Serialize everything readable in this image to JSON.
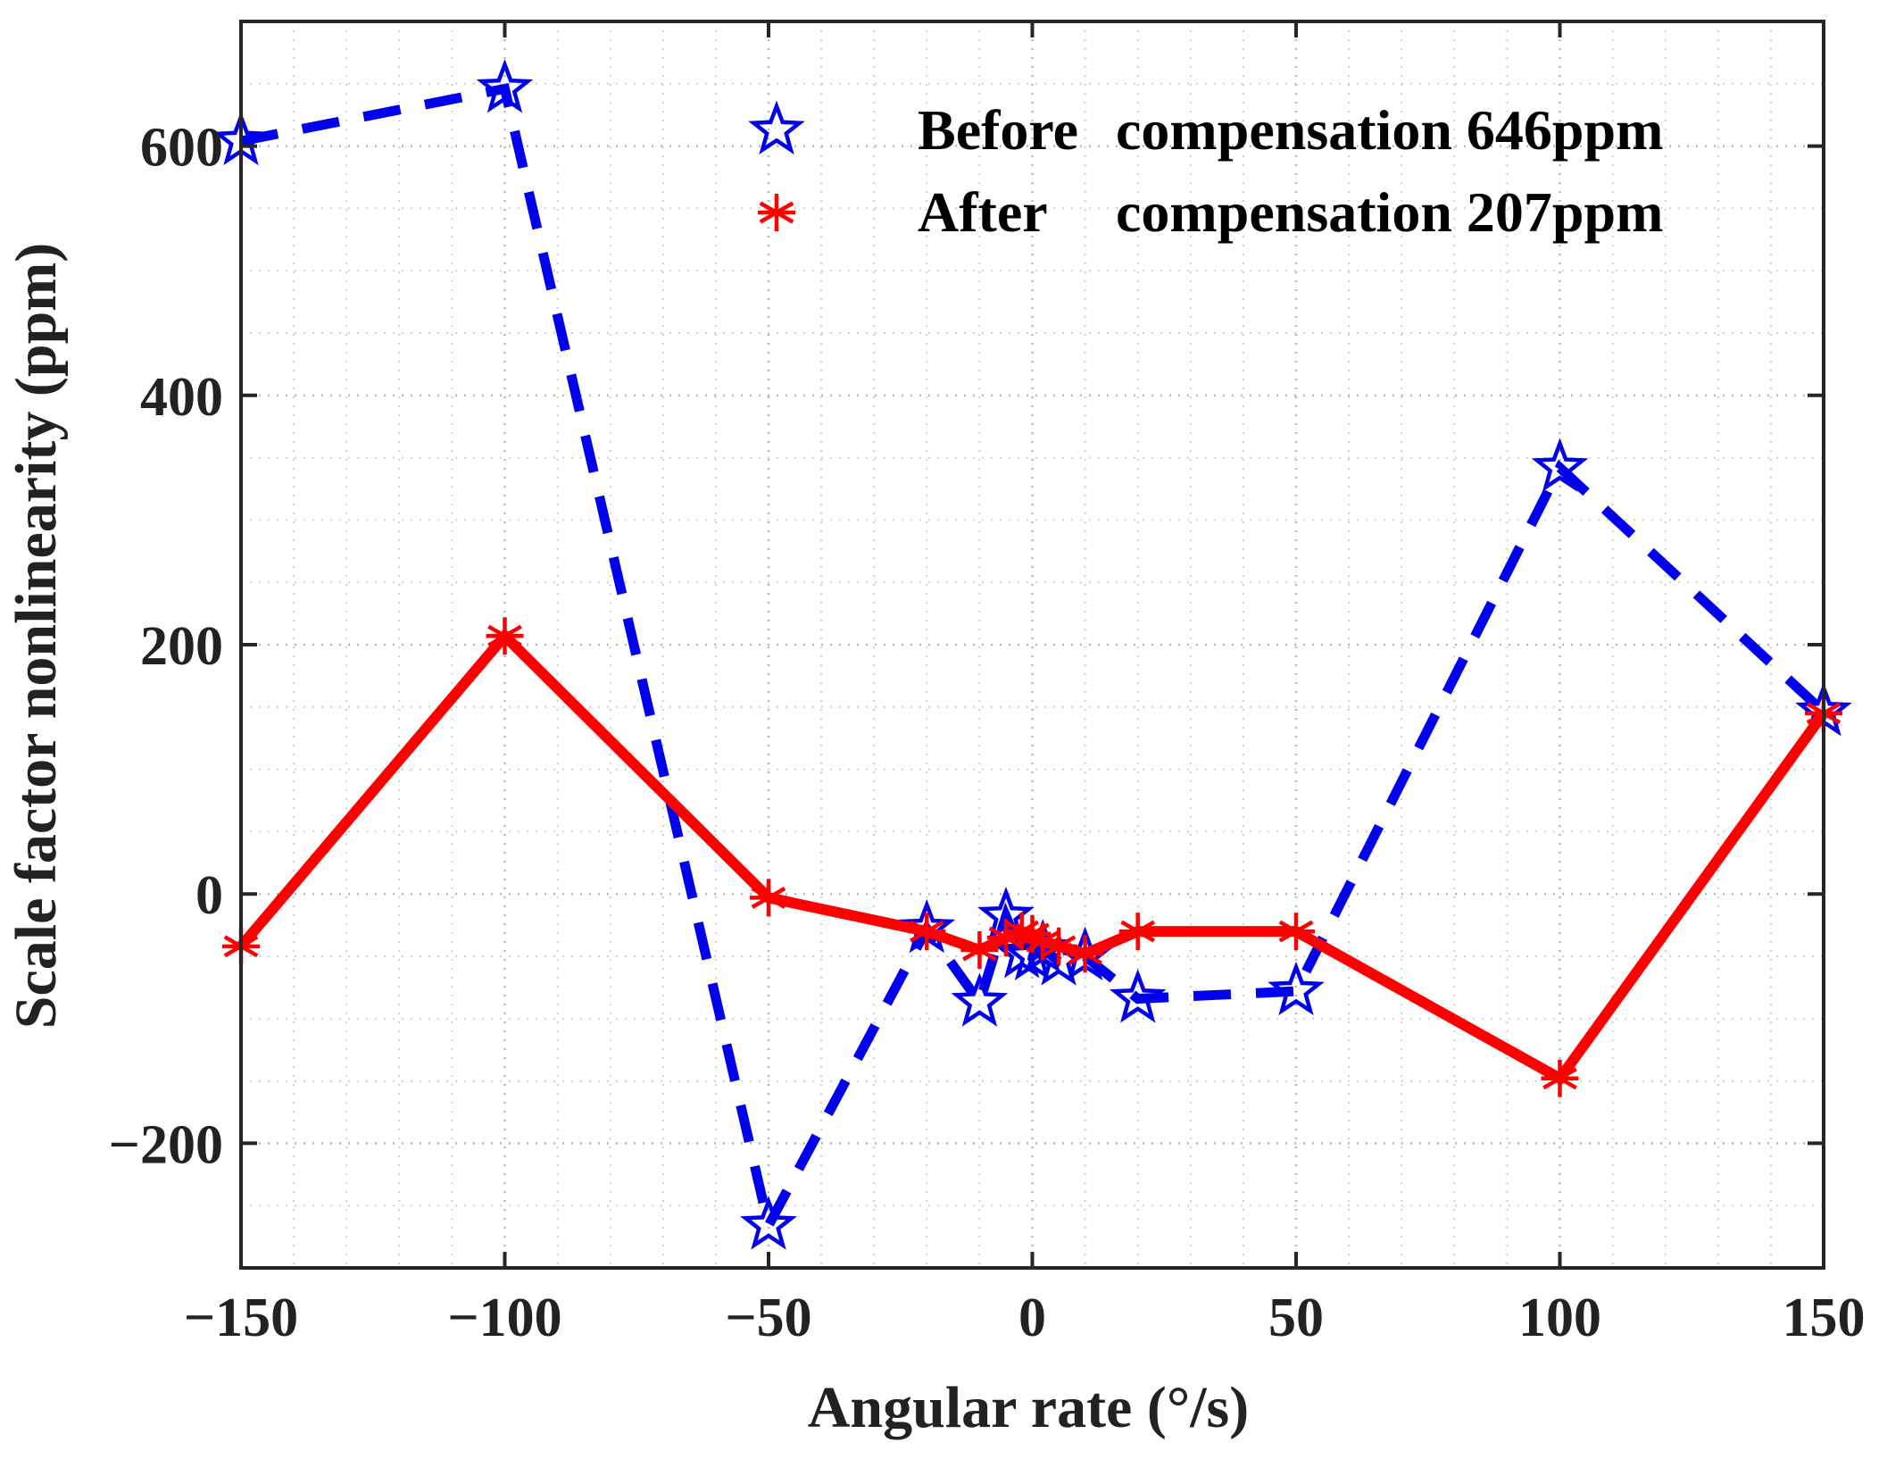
{
  "chart_data": {
    "type": "line",
    "title": "",
    "xlabel": "Angular rate (°/s)",
    "ylabel": "Scale factor nonlinearity (ppm)",
    "xlim": [
      -150,
      150
    ],
    "ylim": [
      -300,
      700
    ],
    "xticks": [
      -150,
      -100,
      -50,
      0,
      50,
      100,
      150
    ],
    "xtick_labels": [
      "−150",
      "−100",
      "−50",
      "0",
      "50",
      "100",
      "150"
    ],
    "yticks": [
      -200,
      0,
      200,
      400,
      600
    ],
    "ytick_labels": [
      "−200",
      "0",
      "200",
      "400",
      "600"
    ],
    "grid": true,
    "legend_position": "top-right",
    "series": [
      {
        "name": "Before compensation 646ppm",
        "legend_parts": [
          "Before",
          "compensation 646ppm"
        ],
        "color": "#0000ee",
        "marker": "star",
        "line_style": "dashed",
        "x": [
          -150,
          -100,
          -50,
          -20,
          -10,
          -5,
          -2,
          0,
          2,
          5,
          10,
          20,
          50,
          100,
          150
        ],
        "y": [
          604,
          646,
          -266,
          -28,
          -87,
          -18,
          -48,
          -50,
          -44,
          -54,
          -50,
          -84,
          -78,
          342,
          146
        ]
      },
      {
        "name": "After compensation 207ppm",
        "legend_parts": [
          "After",
          "compensation 207ppm"
        ],
        "color": "#ff0000",
        "marker": "asterisk",
        "line_style": "solid",
        "x": [
          -150,
          -100,
          -50,
          -20,
          -10,
          -5,
          -2,
          0,
          2,
          5,
          10,
          20,
          50,
          100,
          150
        ],
        "y": [
          -42,
          207,
          -3,
          -30,
          -45,
          -35,
          -30,
          -32,
          -38,
          -42,
          -48,
          -30,
          -30,
          -148,
          145
        ]
      }
    ]
  }
}
